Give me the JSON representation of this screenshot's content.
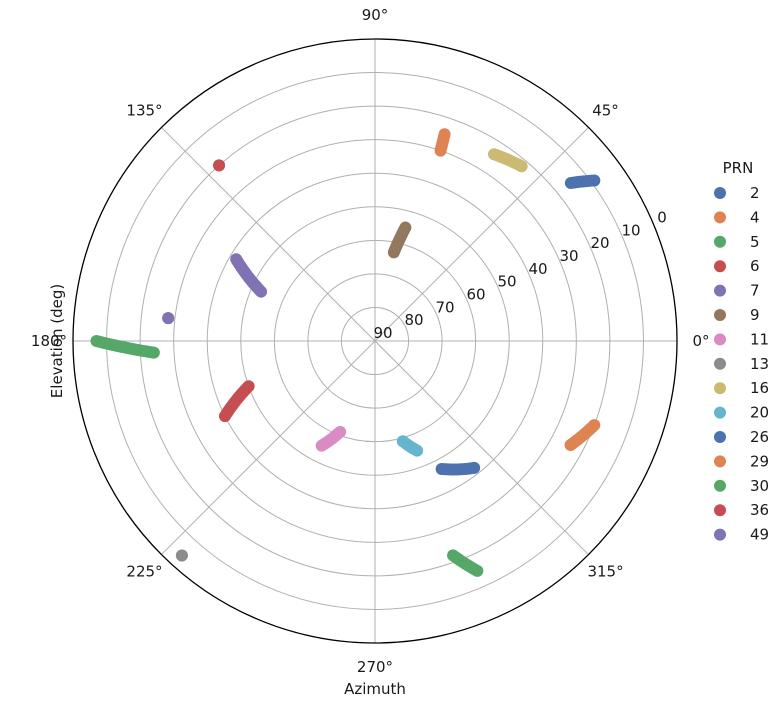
{
  "chart_data": {
    "type": "scatter",
    "projection": "polar",
    "title": "",
    "xlabel": "Azimuth",
    "ylabel": "Elevation (deg)",
    "theta_ticks": [
      {
        "deg": 0,
        "label": "0°"
      },
      {
        "deg": 45,
        "label": "45°"
      },
      {
        "deg": 90,
        "label": "90°"
      },
      {
        "deg": 135,
        "label": "135°"
      },
      {
        "deg": 180,
        "label": "180°"
      },
      {
        "deg": 225,
        "label": "225°"
      },
      {
        "deg": 270,
        "label": "270°"
      },
      {
        "deg": 315,
        "label": "315°"
      }
    ],
    "r_ticks": [
      {
        "elev": 0,
        "label": "0"
      },
      {
        "elev": 10,
        "label": "10"
      },
      {
        "elev": 20,
        "label": "20"
      },
      {
        "elev": 30,
        "label": "30"
      },
      {
        "elev": 40,
        "label": "40"
      },
      {
        "elev": 50,
        "label": "50"
      },
      {
        "elev": 60,
        "label": "60"
      },
      {
        "elev": 70,
        "label": "70"
      },
      {
        "elev": 80,
        "label": "80"
      },
      {
        "elev": 90,
        "label": "90"
      }
    ],
    "r_range": [
      90,
      0
    ],
    "r_tick_angle_deg": 22.5,
    "grid": true,
    "legend": {
      "title": "PRN",
      "placement": "right"
    },
    "series": [
      {
        "name": "2",
        "color": "#4c72b0",
        "az": [
          38.9,
          36.2
        ],
        "el": [
          15,
          9
        ]
      },
      {
        "name": "4",
        "color": "#dd8452",
        "az": [
          71.0,
          71.4
        ],
        "el": [
          30,
          25
        ]
      },
      {
        "name": "5",
        "color": "#55a868",
        "az": [
          183.0,
          180.0
        ],
        "el": [
          24,
          7
        ]
      },
      {
        "name": "6",
        "color": "#c44e52",
        "az": [
          131.6,
          131.6
        ],
        "el": [
          20,
          20
        ]
      },
      {
        "name": "7",
        "color": "#8172b3",
        "az": [
          173.7,
          173.7
        ],
        "el": [
          28,
          28
        ]
      },
      {
        "name": "9",
        "color": "#937860",
        "az": [
          78.0,
          75.0
        ],
        "el": [
          63,
          55
        ]
      },
      {
        "name": "11",
        "color": "#da8bc3",
        "az": [
          243.0,
          249.0
        ],
        "el": [
          55,
          61
        ]
      },
      {
        "name": "13",
        "color": "#8c8c8c",
        "az": [
          228.0,
          228.0
        ],
        "el": [
          4,
          4
        ]
      },
      {
        "name": "16",
        "color": "#ccb974",
        "az": [
          57.5,
          50.0
        ],
        "el": [
          24,
          22
        ]
      },
      {
        "name": "20",
        "color": "#64b5cd",
        "az": [
          291.0,
          285.5
        ],
        "el": [
          55,
          59
        ]
      },
      {
        "name": "26",
        "color": "#4c72b0",
        "az": [
          308.0,
          297.5
        ],
        "el": [
          42,
          47
        ]
      },
      {
        "name": "29",
        "color": "#dd8452",
        "az": [
          339.0,
          332.0
        ],
        "el": [
          20,
          24
        ]
      },
      {
        "name": "30",
        "color": "#55a868",
        "az": [
          290.0,
          294.0
        ],
        "el": [
          22,
          15
        ]
      },
      {
        "name": "36",
        "color": "#c44e52",
        "az": [
          206.6,
          199.7
        ],
        "el": [
          40,
          50
        ]
      },
      {
        "name": "49",
        "color": "#8172b3",
        "az": [
          149.5,
          156.6
        ],
        "el": [
          42,
          53
        ]
      }
    ]
  }
}
